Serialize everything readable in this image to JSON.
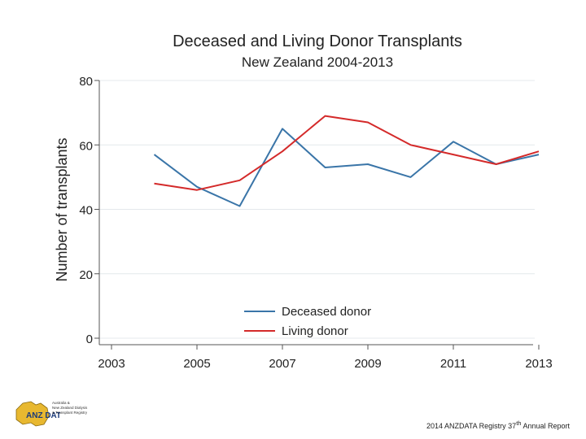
{
  "chart_data": {
    "type": "line",
    "title": "Deceased and Living Donor Transplants",
    "subtitle": "New Zealand 2004-2013",
    "xlabel": "",
    "ylabel": "Number of transplants",
    "xlim": [
      2003,
      2013
    ],
    "ylim": [
      0,
      80
    ],
    "x_ticks": [
      2003,
      2005,
      2007,
      2009,
      2011,
      2013
    ],
    "y_ticks": [
      0,
      20,
      40,
      60,
      80
    ],
    "grid": "horizontal",
    "legend_position": "bottom-center-inside",
    "x": [
      2004,
      2005,
      2006,
      2007,
      2008,
      2009,
      2010,
      2011,
      2012,
      2013
    ],
    "series": [
      {
        "name": "Deceased donor",
        "color": "#3a75a8",
        "values": [
          57,
          47,
          41,
          65,
          53,
          54,
          50,
          61,
          54,
          57
        ]
      },
      {
        "name": "Living donor",
        "color": "#d42a2a",
        "values": [
          48,
          46,
          49,
          58,
          69,
          67,
          60,
          57,
          54,
          58
        ]
      }
    ]
  },
  "logo": {
    "initials": "ANZ DATA",
    "lines": [
      "Australia &",
      "New Zealand Dialysis",
      "& Transplant Registry"
    ]
  },
  "footer": {
    "text": "2014 ANZDATA Registry 37",
    "superscript": "th",
    "suffix": " Annual Report"
  }
}
